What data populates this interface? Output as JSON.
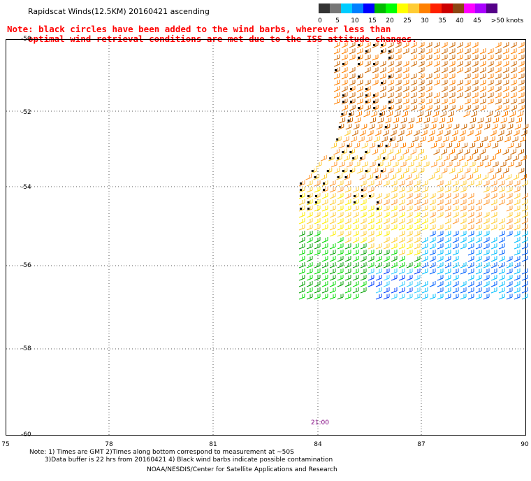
{
  "title": "Rapidscat Winds(12.5KM) 20160421 ascending",
  "note_line1": "Note: black circles have been added to the wind barbs, wherever less than",
  "note_line2": "optimal wind retrieval conditions are met due to the ISS attitude changes.",
  "legend": {
    "labels": [
      "0",
      "5",
      "10",
      "15",
      "20",
      "25",
      "30",
      "35",
      "40",
      "45",
      ">50 knots"
    ],
    "colors": [
      "#333333",
      "#777777",
      "#00ccff",
      "#0080ff",
      "#0000ff",
      "#00bb00",
      "#00ff00",
      "#ffff00",
      "#ffcc33",
      "#ff8000",
      "#ff2000",
      "#cc0000",
      "#8b4513",
      "#ff00ff",
      "#aa00ff",
      "#550088"
    ]
  },
  "lat_labels": [
    "-50",
    "-52",
    "-54",
    "-56",
    "-58",
    "-60"
  ],
  "lon_labels": [
    "75",
    "78",
    "81",
    "84",
    "87",
    "90"
  ],
  "time_label": "21:00",
  "footnote_line1": "Note: 1) Times are GMT 2)Times along bottom correspond to measurement at ~50S",
  "footnote_line2": "3)Data buffer is 22 hrs from 20160421 4) Black wind barbs indicate possible contamination",
  "credit": "NOAA/NESDIS/Center for Satellite Applications and Research"
}
